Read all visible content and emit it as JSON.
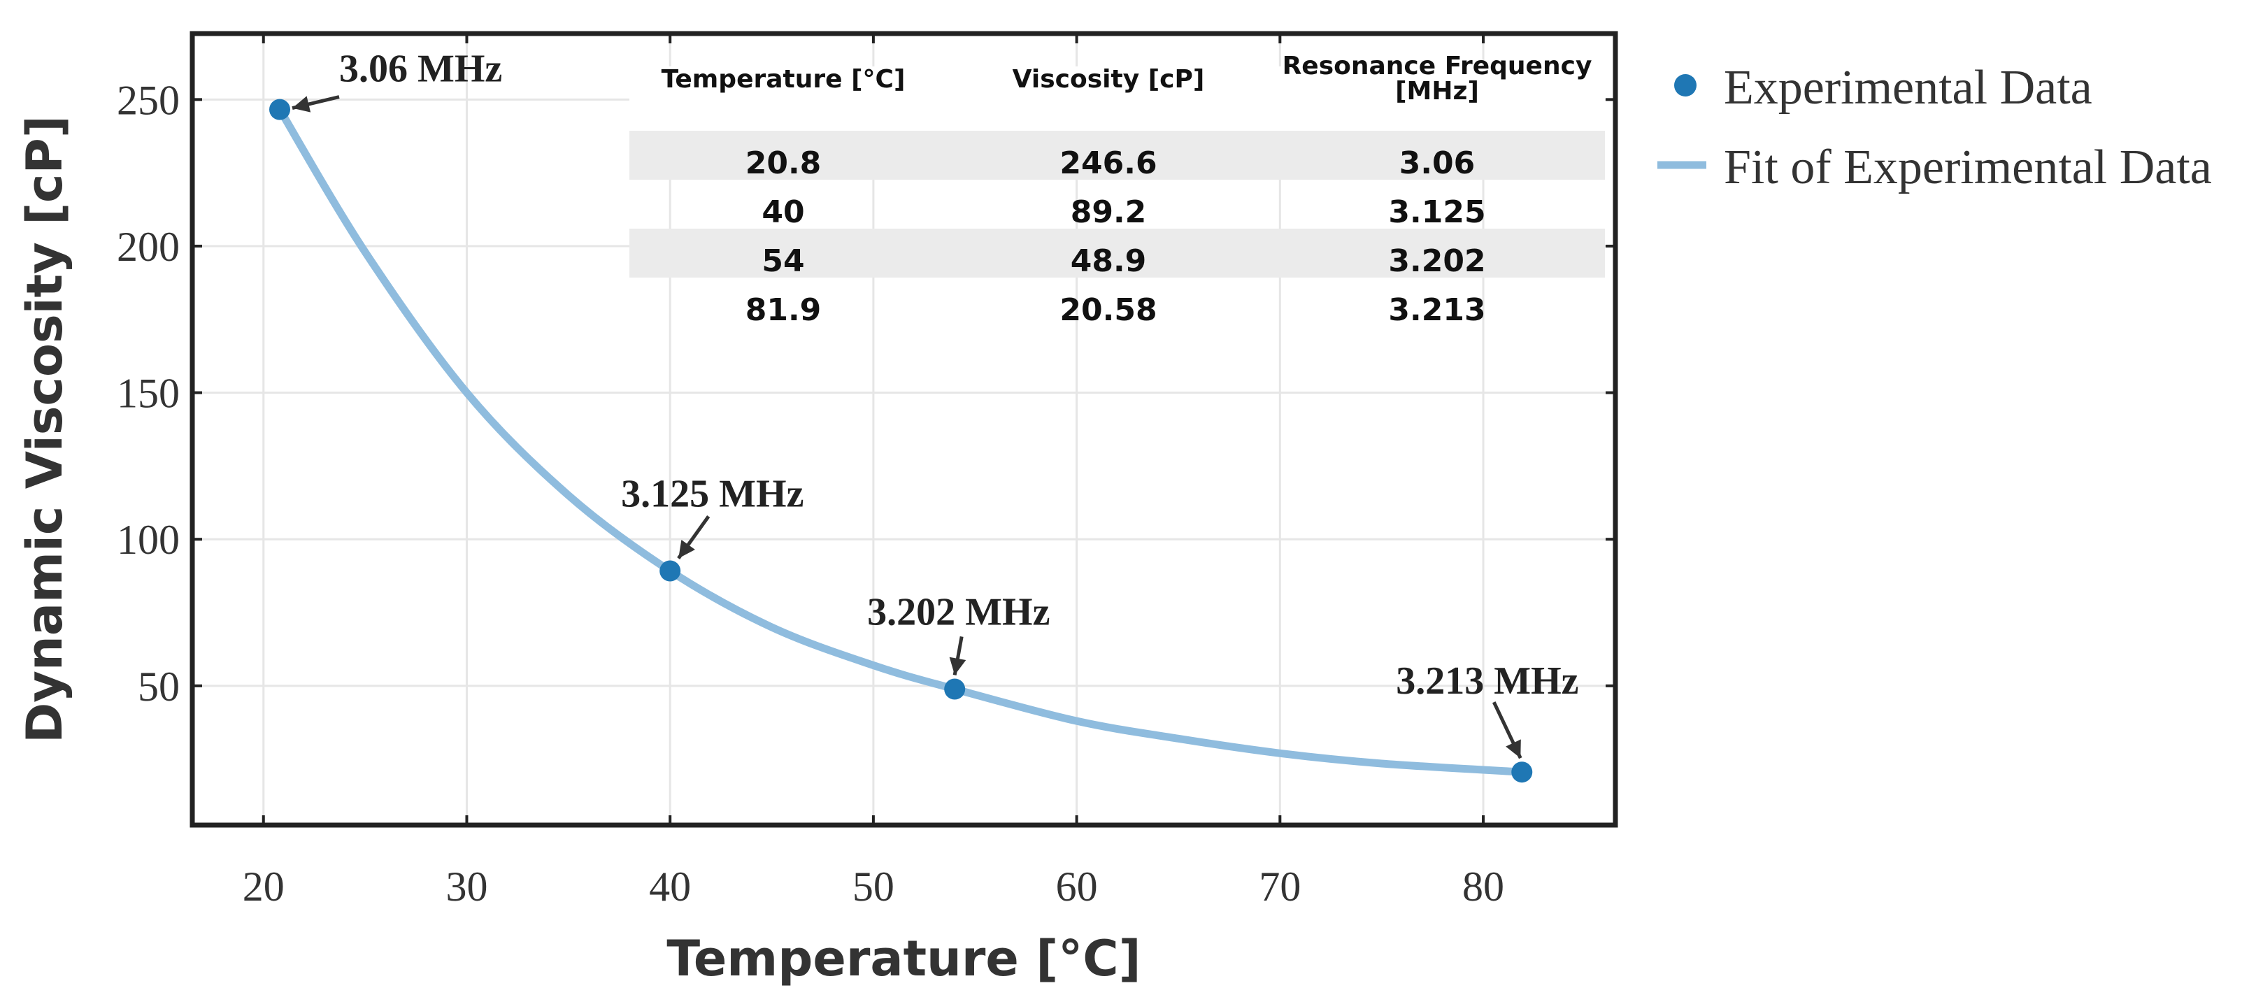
{
  "chart_data": {
    "type": "line",
    "xlabel": "Temperature [°C]",
    "ylabel": "Dynamic Viscosity [cP]",
    "xlim": [
      16.5,
      86.5
    ],
    "ylim": [
      2.5,
      272.5
    ],
    "xticks": [
      20,
      30,
      40,
      50,
      60,
      70,
      80
    ],
    "yticks": [
      50,
      100,
      150,
      200,
      250
    ],
    "grid": true,
    "legend_position": "outside-right",
    "series": [
      {
        "name": "Experimental Data",
        "kind": "scatter",
        "color": "#1f77b4",
        "points": [
          {
            "x": 20.8,
            "y": 246.6
          },
          {
            "x": 40,
            "y": 89.2
          },
          {
            "x": 54,
            "y": 48.9
          },
          {
            "x": 81.9,
            "y": 20.58
          }
        ]
      },
      {
        "name": "Fit of Experimental Data",
        "kind": "line",
        "color": "#8fbcde",
        "points": [
          {
            "x": 20.8,
            "y": 246.6
          },
          {
            "x": 25,
            "y": 198
          },
          {
            "x": 30,
            "y": 150
          },
          {
            "x": 35,
            "y": 115
          },
          {
            "x": 40,
            "y": 89.2
          },
          {
            "x": 45,
            "y": 70
          },
          {
            "x": 50,
            "y": 57
          },
          {
            "x": 54,
            "y": 48.9
          },
          {
            "x": 60,
            "y": 38
          },
          {
            "x": 65,
            "y": 32
          },
          {
            "x": 70,
            "y": 27
          },
          {
            "x": 75,
            "y": 23.5
          },
          {
            "x": 81.9,
            "y": 20.58
          }
        ]
      }
    ],
    "annotations": [
      {
        "text": "3.06 MHz",
        "x": 20.8,
        "y": 246.6
      },
      {
        "text": "3.125 MHz",
        "x": 40,
        "y": 89.2
      },
      {
        "text": "3.202 MHz",
        "x": 54,
        "y": 48.9
      },
      {
        "text": "3.213 MHz",
        "x": 81.9,
        "y": 20.58
      }
    ],
    "table": {
      "headers": [
        "Temperature [°C]",
        "Viscosity [cP]",
        "Resonance Frequency",
        "[MHz]"
      ],
      "rows": [
        [
          "20.8",
          "246.6",
          "3.06"
        ],
        [
          "40",
          "89.2",
          "3.125"
        ],
        [
          "54",
          "48.9",
          "3.202"
        ],
        [
          "81.9",
          "20.58",
          "3.213"
        ]
      ]
    }
  }
}
